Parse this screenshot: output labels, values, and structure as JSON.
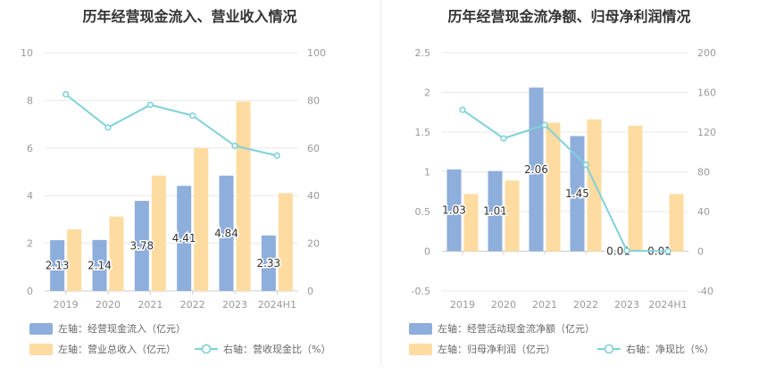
{
  "colors": {
    "bar1": "#8eaedc",
    "bar2": "#fedba0",
    "line": "#7fd1d9",
    "axis": "#999999",
    "grid": "#e8e8e8",
    "label": "#333333",
    "legendText": "#666666"
  },
  "chart_data": [
    {
      "type": "bar",
      "title": "历年经营现金流入、营业收入情况",
      "categories": [
        "2019",
        "2020",
        "2021",
        "2022",
        "2023",
        "2024H1"
      ],
      "y_left": {
        "min": 0,
        "max": 10,
        "ticks": [
          "0",
          "2",
          "4",
          "6",
          "8",
          "10"
        ]
      },
      "y_right": {
        "min": 0,
        "max": 100,
        "ticks": [
          "0",
          "20",
          "40",
          "60",
          "80",
          "100"
        ]
      },
      "series": [
        {
          "name": "左轴：经营现金流入（亿元）",
          "kind": "bar",
          "axis": "left",
          "values": [
            2.13,
            2.14,
            3.78,
            4.41,
            4.84,
            2.33
          ],
          "labels": [
            "2.13",
            "2.14",
            "3.78",
            "4.41",
            "4.84",
            "2.33"
          ]
        },
        {
          "name": "左轴：营业总收入（亿元）",
          "kind": "bar",
          "axis": "left",
          "values": [
            2.58,
            3.12,
            4.84,
            5.99,
            7.95,
            4.1
          ]
        },
        {
          "name": "右轴：营收现金比（%）",
          "kind": "line",
          "axis": "right",
          "values": [
            82.5,
            68.6,
            78.1,
            73.6,
            60.9,
            56.8
          ]
        }
      ],
      "legend_position": "bottom-left"
    },
    {
      "type": "bar",
      "title": "历年经营现金流净额、归母净利润情况",
      "categories": [
        "2019",
        "2020",
        "2021",
        "2022",
        "2023",
        "2024H1"
      ],
      "y_left": {
        "min": -0.5,
        "max": 2.5,
        "ticks": [
          "-0.5",
          "0",
          "0.5",
          "1",
          "1.5",
          "2",
          "2.5"
        ]
      },
      "y_right": {
        "min": -40,
        "max": 200,
        "ticks": [
          "-40",
          "0",
          "40",
          "80",
          "120",
          "160",
          "200"
        ]
      },
      "series": [
        {
          "name": "左轴：经营活动现金流净额（亿元）",
          "kind": "bar",
          "axis": "left",
          "values": [
            1.03,
            1.01,
            2.06,
            1.45,
            0.01,
            0.01
          ],
          "labels": [
            "1.03",
            "1.01",
            "2.06",
            "1.45",
            "0.01",
            "0.01"
          ]
        },
        {
          "name": "左轴：归母净利润（亿元）",
          "kind": "bar",
          "axis": "left",
          "values": [
            0.72,
            0.89,
            1.62,
            1.66,
            1.58,
            0.72
          ]
        },
        {
          "name": "右轴：净现比（%）",
          "kind": "line",
          "axis": "right",
          "values": [
            142.4,
            113.6,
            127.2,
            87.1,
            0.6,
            0.0
          ]
        }
      ],
      "legend_position": "bottom-left"
    }
  ]
}
